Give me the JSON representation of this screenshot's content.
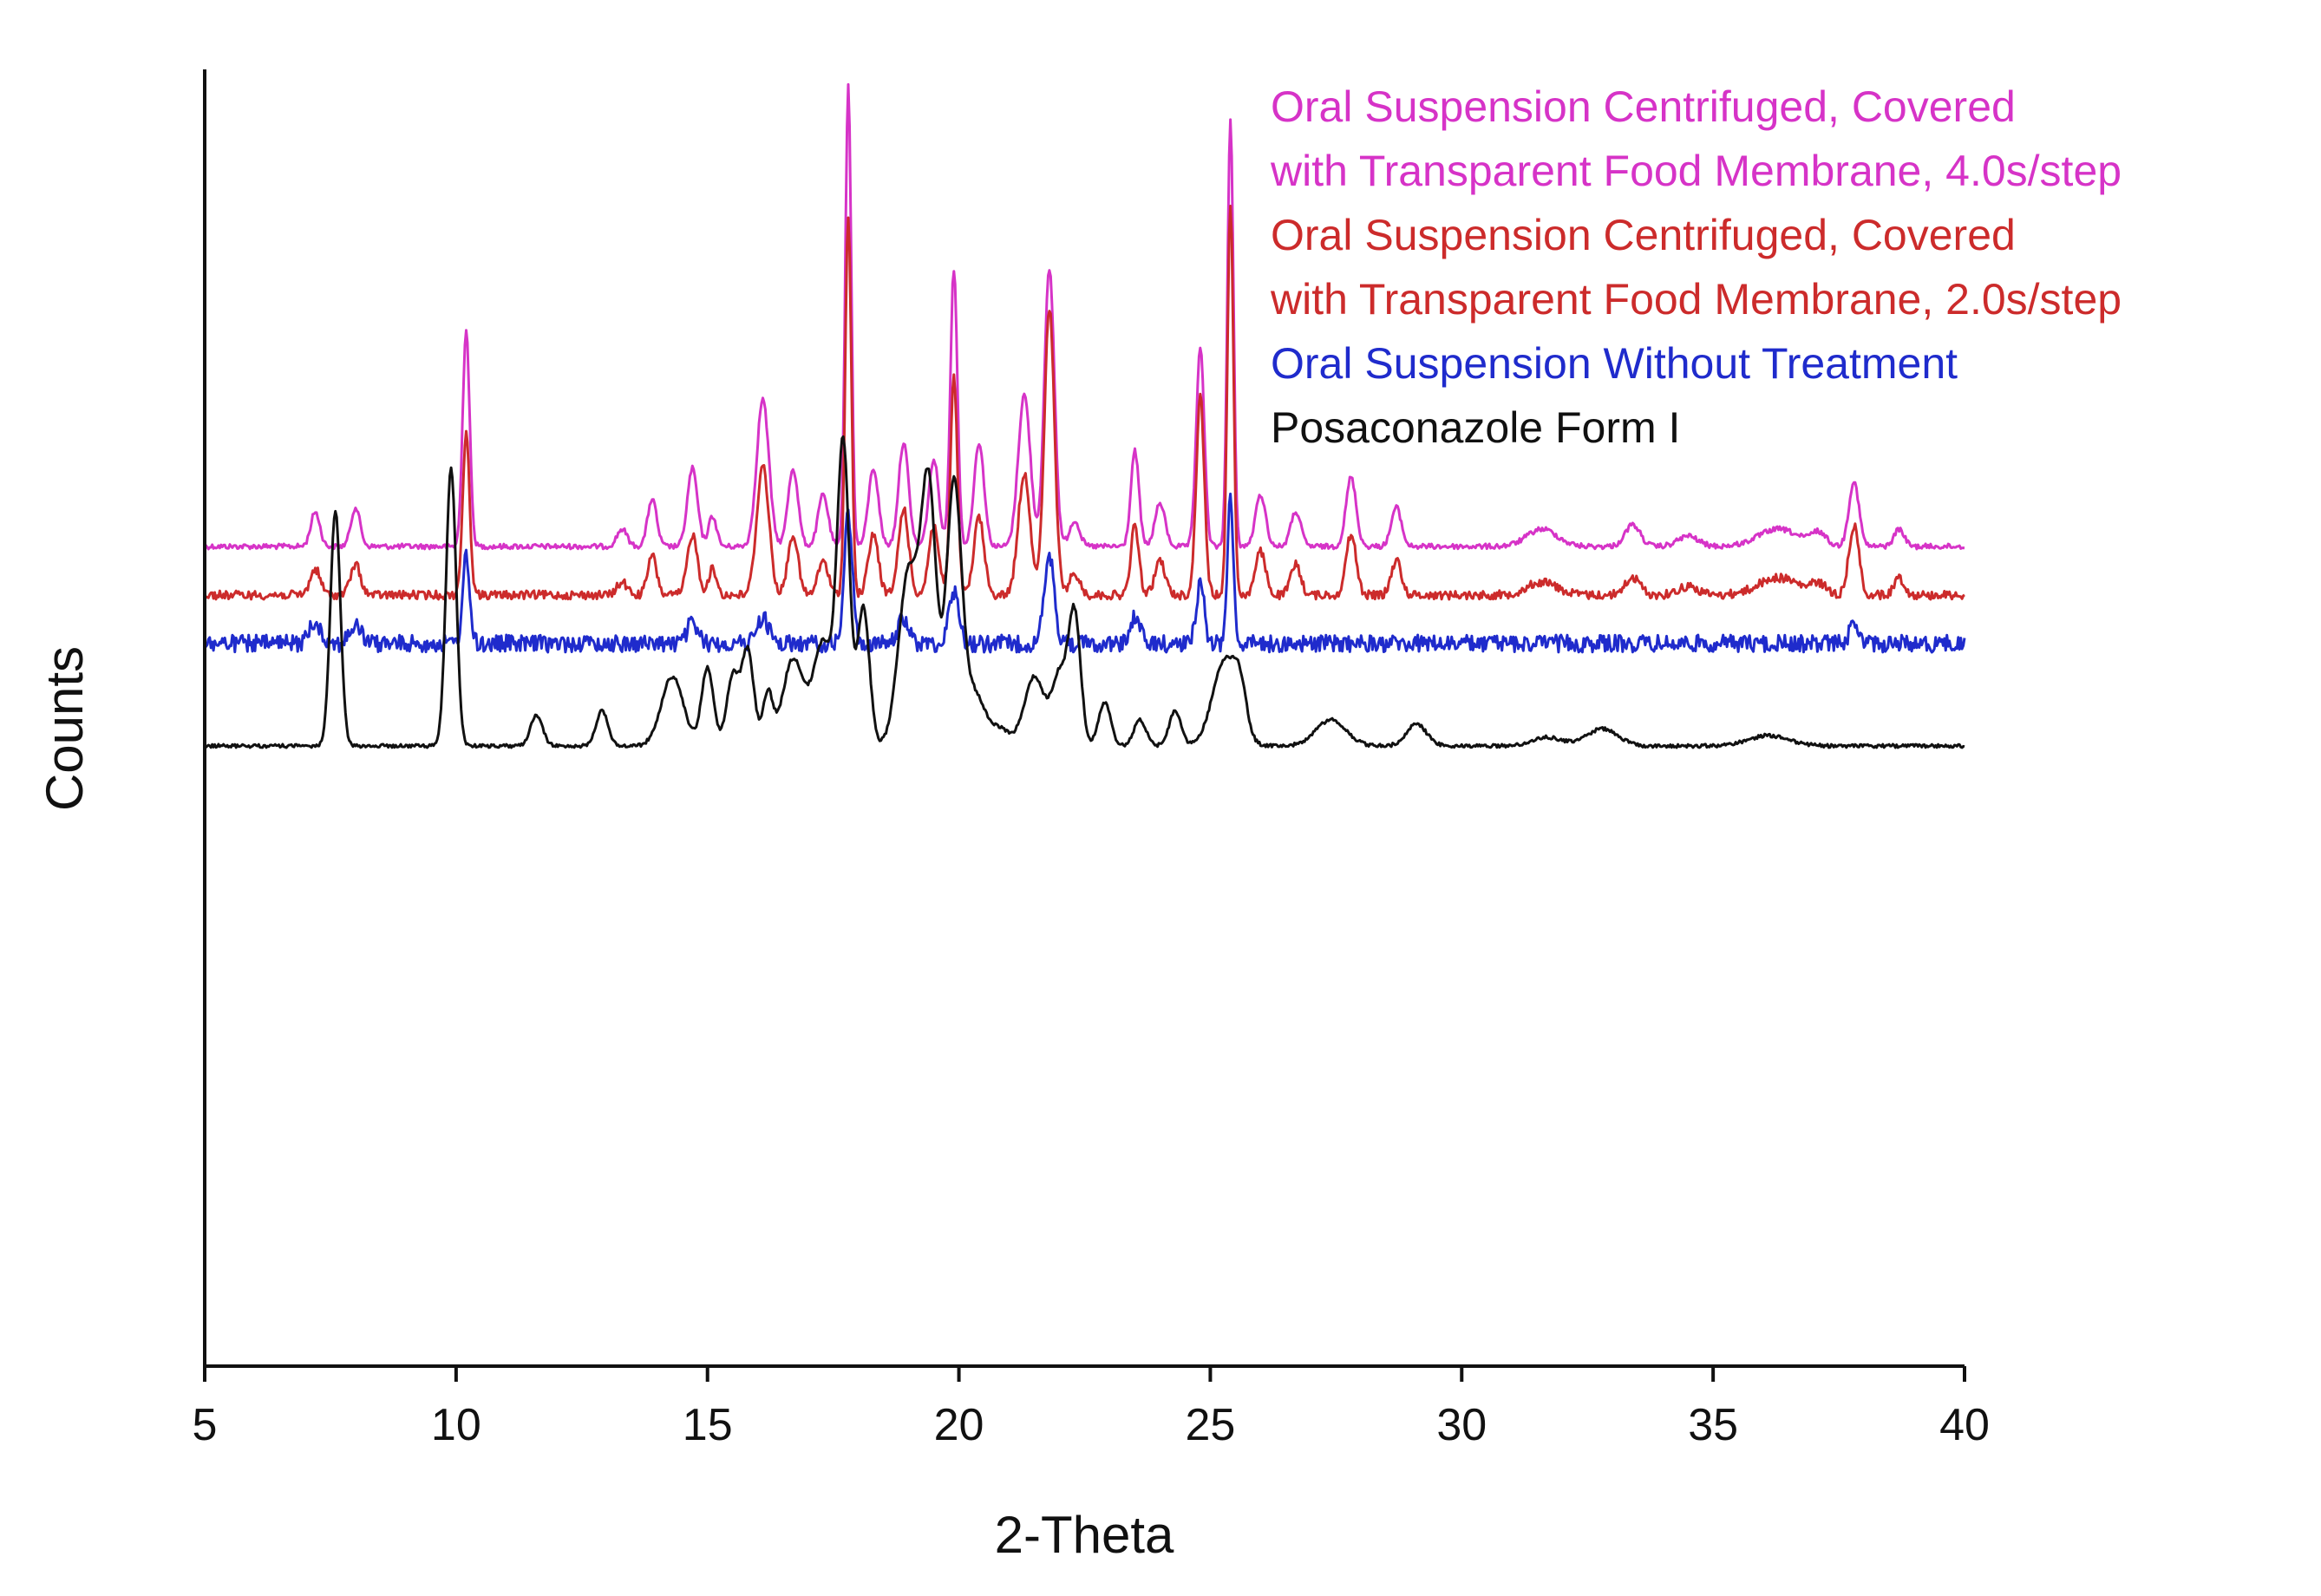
{
  "chart_data": {
    "type": "line",
    "title": "",
    "xlabel": "2-Theta",
    "ylabel": "Counts",
    "xlim": [
      5,
      40
    ],
    "x_ticks": [
      5,
      10,
      15,
      20,
      25,
      30,
      35,
      40
    ],
    "x_tick_labels": [
      "5",
      "10",
      "15",
      "20",
      "25",
      "30",
      "35",
      "40"
    ],
    "y_ticks_shown": false,
    "grid": false,
    "legend_position": "top-right",
    "legend": [
      {
        "lines": [
          "Oral Suspension Centrifuged, Covered",
          "with Transparent Food Membrane, 4.0s/step"
        ],
        "color": "#d633c7"
      },
      {
        "lines": [
          "Oral Suspension Centrifuged, Covered",
          "with Transparent Food Membrane, 2.0s/step"
        ],
        "color": "#cc2b2b"
      },
      {
        "lines": [
          "Oral Suspension Without Treatment"
        ],
        "color": "#1f2bcc"
      },
      {
        "lines": [
          "Posaconazole Form I"
        ],
        "color": "#111111"
      }
    ],
    "series": [
      {
        "name": "Oral Suspension Centrifuged, Covered with Transparent Food Membrane, 4.0s/step",
        "color": "#d633c7",
        "baseline": 630,
        "noise": 3,
        "peaks": [
          [
            7.2,
            40,
            0.09
          ],
          [
            8.0,
            45,
            0.09
          ],
          [
            10.2,
            250,
            0.07
          ],
          [
            13.3,
            20,
            0.1
          ],
          [
            13.9,
            55,
            0.09
          ],
          [
            14.7,
            90,
            0.1
          ],
          [
            15.1,
            35,
            0.08
          ],
          [
            16.1,
            170,
            0.12
          ],
          [
            16.7,
            90,
            0.1
          ],
          [
            17.3,
            60,
            0.1
          ],
          [
            17.8,
            530,
            0.06
          ],
          [
            18.3,
            90,
            0.1
          ],
          [
            18.9,
            120,
            0.1
          ],
          [
            19.5,
            100,
            0.1
          ],
          [
            19.9,
            320,
            0.07
          ],
          [
            20.4,
            120,
            0.1
          ],
          [
            21.3,
            175,
            0.12
          ],
          [
            21.8,
            320,
            0.1
          ],
          [
            22.3,
            30,
            0.1
          ],
          [
            23.5,
            110,
            0.08
          ],
          [
            24.0,
            50,
            0.1
          ],
          [
            24.8,
            230,
            0.08
          ],
          [
            25.4,
            490,
            0.06
          ],
          [
            26.0,
            60,
            0.1
          ],
          [
            26.7,
            40,
            0.1
          ],
          [
            27.8,
            80,
            0.1
          ],
          [
            28.7,
            45,
            0.1
          ],
          [
            31.6,
            20,
            0.3
          ],
          [
            33.4,
            25,
            0.15
          ],
          [
            34.5,
            12,
            0.2
          ],
          [
            36.3,
            20,
            0.4
          ],
          [
            37.1,
            15,
            0.15
          ],
          [
            37.8,
            75,
            0.1
          ],
          [
            38.7,
            20,
            0.1
          ]
        ]
      },
      {
        "name": "Oral Suspension Centrifuged, Covered with Transparent Food Membrane, 2.0s/step",
        "color": "#cc2b2b",
        "baseline": 686,
        "noise": 5,
        "peaks": [
          [
            7.2,
            30,
            0.1
          ],
          [
            8.0,
            35,
            0.1
          ],
          [
            10.2,
            185,
            0.07
          ],
          [
            13.3,
            15,
            0.1
          ],
          [
            13.9,
            45,
            0.09
          ],
          [
            14.7,
            70,
            0.1
          ],
          [
            15.1,
            30,
            0.08
          ],
          [
            16.1,
            150,
            0.12
          ],
          [
            16.7,
            70,
            0.1
          ],
          [
            17.3,
            40,
            0.1
          ],
          [
            17.8,
            440,
            0.06
          ],
          [
            18.3,
            70,
            0.1
          ],
          [
            18.9,
            100,
            0.1
          ],
          [
            19.5,
            80,
            0.1
          ],
          [
            19.9,
            250,
            0.07
          ],
          [
            20.4,
            90,
            0.1
          ],
          [
            21.3,
            140,
            0.12
          ],
          [
            21.8,
            330,
            0.1
          ],
          [
            22.3,
            25,
            0.1
          ],
          [
            23.5,
            80,
            0.08
          ],
          [
            24.0,
            40,
            0.1
          ],
          [
            24.8,
            230,
            0.08
          ],
          [
            25.4,
            450,
            0.06
          ],
          [
            26.0,
            50,
            0.1
          ],
          [
            26.7,
            35,
            0.1
          ],
          [
            27.8,
            70,
            0.1
          ],
          [
            28.7,
            40,
            0.1
          ],
          [
            31.6,
            15,
            0.3
          ],
          [
            33.4,
            20,
            0.15
          ],
          [
            34.5,
            10,
            0.2
          ],
          [
            36.3,
            20,
            0.4
          ],
          [
            37.1,
            12,
            0.15
          ],
          [
            37.8,
            80,
            0.1
          ],
          [
            38.7,
            20,
            0.1
          ]
        ]
      },
      {
        "name": "Oral Suspension Without Treatment",
        "color": "#1f2bcc",
        "baseline": 742,
        "noise": 10,
        "peaks": [
          [
            7.2,
            25,
            0.12
          ],
          [
            8.0,
            20,
            0.12
          ],
          [
            10.2,
            100,
            0.07
          ],
          [
            14.7,
            25,
            0.1
          ],
          [
            16.1,
            30,
            0.12
          ],
          [
            17.8,
            150,
            0.08
          ],
          [
            18.9,
            30,
            0.1
          ],
          [
            19.9,
            60,
            0.1
          ],
          [
            21.8,
            100,
            0.1
          ],
          [
            23.5,
            30,
            0.1
          ],
          [
            24.8,
            70,
            0.08
          ],
          [
            25.4,
            170,
            0.06
          ],
          [
            37.8,
            20,
            0.1
          ]
        ]
      },
      {
        "name": "Posaconazole Form I",
        "color": "#111111",
        "baseline": 860,
        "noise": 2,
        "peaks": [
          [
            7.6,
            270,
            0.1
          ],
          [
            9.9,
            320,
            0.1
          ],
          [
            11.6,
            35,
            0.12
          ],
          [
            12.9,
            40,
            0.12
          ],
          [
            14.3,
            80,
            0.22
          ],
          [
            15.0,
            90,
            0.12
          ],
          [
            15.5,
            80,
            0.12
          ],
          [
            15.8,
            110,
            0.12
          ],
          [
            16.2,
            60,
            0.1
          ],
          [
            16.7,
            100,
            0.2
          ],
          [
            17.3,
            120,
            0.2
          ],
          [
            17.7,
            340,
            0.12
          ],
          [
            18.1,
            160,
            0.12
          ],
          [
            19.0,
            200,
            0.2
          ],
          [
            19.4,
            290,
            0.15
          ],
          [
            19.9,
            300,
            0.15
          ],
          [
            20.3,
            60,
            0.2
          ],
          [
            20.8,
            20,
            0.2
          ],
          [
            21.5,
            80,
            0.2
          ],
          [
            22.0,
            80,
            0.15
          ],
          [
            22.3,
            150,
            0.12
          ],
          [
            22.9,
            50,
            0.12
          ],
          [
            23.6,
            30,
            0.12
          ],
          [
            24.3,
            40,
            0.12
          ],
          [
            25.3,
            100,
            0.25
          ],
          [
            25.6,
            40,
            0.12
          ],
          [
            27.4,
            30,
            0.3
          ],
          [
            29.1,
            25,
            0.2
          ],
          [
            31.7,
            10,
            0.3
          ],
          [
            32.8,
            20,
            0.3
          ],
          [
            36.1,
            12,
            0.4
          ]
        ]
      }
    ]
  }
}
